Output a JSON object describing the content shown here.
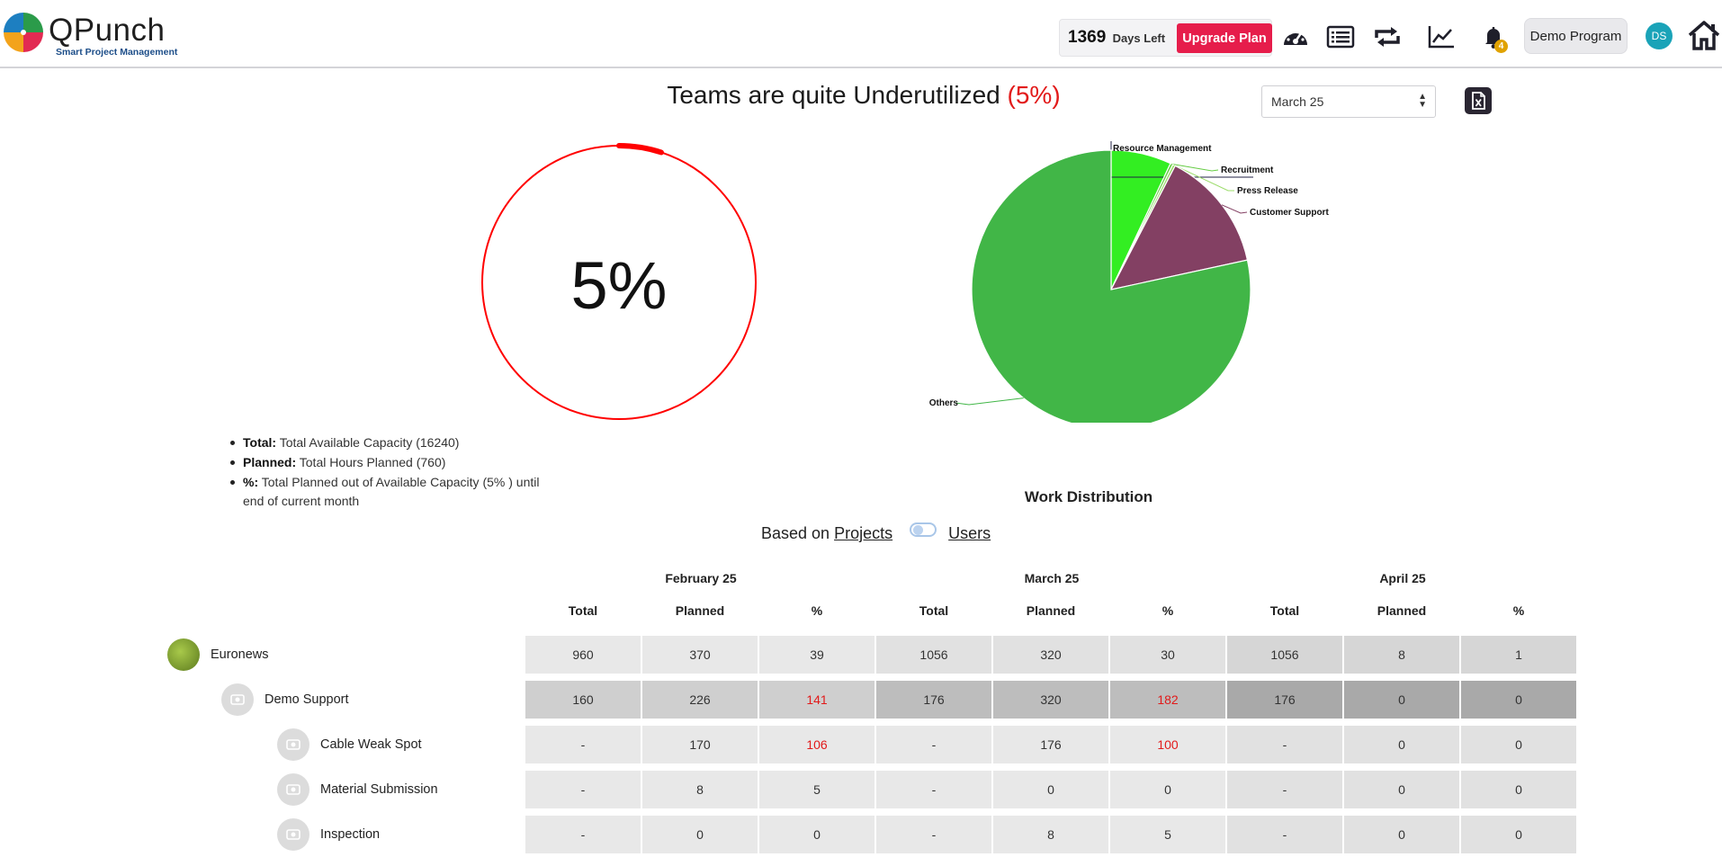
{
  "header": {
    "brand": "QPunch",
    "tagline": "Smart Project Management",
    "days_left_value": "1369",
    "days_left_label": "Days Left",
    "upgrade_label": "Upgrade Plan",
    "notification_count": "4",
    "program_label": "Demo Program",
    "avatar_initials": "DS",
    "icons": [
      "dashboard-gauge-icon",
      "list-view-icon",
      "sync-arrows-icon",
      "analytics-chart-icon",
      "bell-icon",
      "home-icon"
    ]
  },
  "summary": {
    "headline_text": "Teams are quite Underutilized ",
    "headline_pct": "(5%)",
    "month_selected": "March 25",
    "gauge_value": 5,
    "gauge_label": "5%",
    "gauge_color": "#ff0000",
    "legend": [
      {
        "key": "Total:",
        "text": "Total Available Capacity (16240)"
      },
      {
        "key": "Planned:",
        "text": "Total Hours Planned (760)"
      },
      {
        "key": "%:",
        "text": "Total Planned out of Available Capacity (5% ) until end of current month"
      }
    ]
  },
  "chart_data": {
    "type": "pie",
    "title": "Work Distribution",
    "slices": [
      {
        "label": "Resource Management",
        "value": 7,
        "color": "#33ee22"
      },
      {
        "label": "Recruitment",
        "value": 0.3,
        "color": "#66cc44"
      },
      {
        "label": "Press Release",
        "value": 0.3,
        "color": "#9bdc6a"
      },
      {
        "label": "Customer Support",
        "value": 14,
        "color": "#834063"
      },
      {
        "label": "Others",
        "value": 78.4,
        "color": "#41b647"
      }
    ]
  },
  "view_toggle": {
    "prefix": "Based on",
    "option_projects": "Projects",
    "option_users": "Users"
  },
  "table": {
    "months": [
      "February 25",
      "March 25",
      "April 25"
    ],
    "columns": [
      "Total",
      "Planned",
      "%"
    ],
    "rows": [
      {
        "label": "Euronews",
        "level": 0,
        "cells": [
          "960",
          "370",
          "39",
          "1056",
          "320",
          "30",
          "1056",
          "8",
          "1"
        ],
        "red": [
          false,
          false,
          false,
          false,
          false,
          false,
          false,
          false,
          false
        ]
      },
      {
        "label": "Demo Support",
        "level": 1,
        "cells": [
          "160",
          "226",
          "141",
          "176",
          "320",
          "182",
          "176",
          "0",
          "0"
        ],
        "red": [
          false,
          false,
          true,
          false,
          false,
          true,
          false,
          false,
          false
        ]
      },
      {
        "label": "Cable Weak Spot",
        "level": 2,
        "cells": [
          "-",
          "170",
          "106",
          "-",
          "176",
          "100",
          "-",
          "0",
          "0"
        ],
        "red": [
          false,
          false,
          true,
          false,
          false,
          true,
          false,
          false,
          false
        ]
      },
      {
        "label": "Material Submission",
        "level": 2,
        "cells": [
          "-",
          "8",
          "5",
          "-",
          "0",
          "0",
          "-",
          "0",
          "0"
        ],
        "red": [
          false,
          false,
          false,
          false,
          false,
          false,
          false,
          false,
          false
        ]
      },
      {
        "label": "Inspection",
        "level": 2,
        "cells": [
          "-",
          "0",
          "0",
          "-",
          "8",
          "5",
          "-",
          "0",
          "0"
        ],
        "red": [
          false,
          false,
          false,
          false,
          false,
          false,
          false,
          false,
          false
        ]
      }
    ]
  }
}
